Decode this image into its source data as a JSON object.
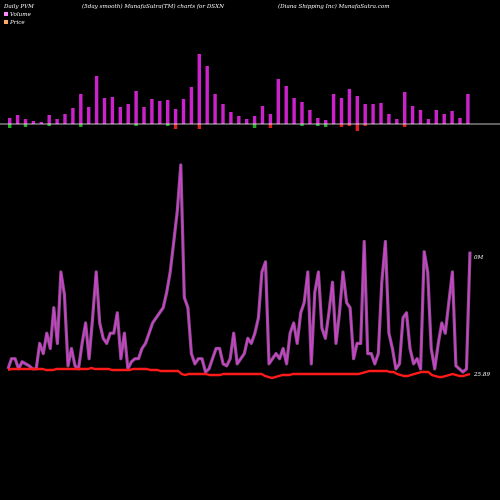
{
  "header": {
    "left": "Daily PVM",
    "center": "(5day smooth) MunafaSutra(TM) charts for DSXN",
    "right": "(Diana Shipping Inc) MunafaSutra.com"
  },
  "legend": {
    "volume": "Volume",
    "price": "Price"
  },
  "labels": {
    "volume_end": "0M",
    "price_end": "25.89"
  },
  "colors": {
    "background": "#000000",
    "volume_line": "#cc44cc",
    "volume_line_glow": "#ff88ff",
    "price_line": "#ff1a1a",
    "bar_up": "#cc22cc",
    "bar_down_red": "#dd2222",
    "bar_down_green": "#22aa22",
    "baseline": "#ffffff",
    "legend_volume": "#ff88ff",
    "legend_price": "#ffaa66"
  },
  "chart_data": {
    "type": "line",
    "bars": [
      {
        "h": 6,
        "d": 4,
        "dc": "green"
      },
      {
        "h": 9,
        "d": 0,
        "dc": ""
      },
      {
        "h": 5,
        "d": 3,
        "dc": "green"
      },
      {
        "h": 3,
        "d": 0,
        "dc": ""
      },
      {
        "h": 2,
        "d": 0,
        "dc": ""
      },
      {
        "h": 9,
        "d": 2,
        "dc": "green"
      },
      {
        "h": 5,
        "d": 0,
        "dc": ""
      },
      {
        "h": 10,
        "d": 0,
        "dc": ""
      },
      {
        "h": 16,
        "d": 0,
        "dc": ""
      },
      {
        "h": 30,
        "d": 3,
        "dc": "green"
      },
      {
        "h": 17,
        "d": 0,
        "dc": ""
      },
      {
        "h": 48,
        "d": 0,
        "dc": ""
      },
      {
        "h": 26,
        "d": 0,
        "dc": ""
      },
      {
        "h": 27,
        "d": 0,
        "dc": ""
      },
      {
        "h": 17,
        "d": 0,
        "dc": ""
      },
      {
        "h": 20,
        "d": 0,
        "dc": ""
      },
      {
        "h": 33,
        "d": 2,
        "dc": "green"
      },
      {
        "h": 17,
        "d": 0,
        "dc": ""
      },
      {
        "h": 25,
        "d": 0,
        "dc": ""
      },
      {
        "h": 23,
        "d": 0,
        "dc": ""
      },
      {
        "h": 24,
        "d": 2,
        "dc": "green"
      },
      {
        "h": 15,
        "d": 5,
        "dc": "red"
      },
      {
        "h": 25,
        "d": 0,
        "dc": ""
      },
      {
        "h": 37,
        "d": 0,
        "dc": ""
      },
      {
        "h": 70,
        "d": 5,
        "dc": "red"
      },
      {
        "h": 58,
        "d": 0,
        "dc": ""
      },
      {
        "h": 30,
        "d": 0,
        "dc": ""
      },
      {
        "h": 20,
        "d": 0,
        "dc": ""
      },
      {
        "h": 12,
        "d": 0,
        "dc": ""
      },
      {
        "h": 8,
        "d": 0,
        "dc": ""
      },
      {
        "h": 5,
        "d": 0,
        "dc": ""
      },
      {
        "h": 8,
        "d": 4,
        "dc": "green"
      },
      {
        "h": 18,
        "d": 0,
        "dc": ""
      },
      {
        "h": 10,
        "d": 4,
        "dc": "red"
      },
      {
        "h": 45,
        "d": 0,
        "dc": ""
      },
      {
        "h": 38,
        "d": 0,
        "dc": ""
      },
      {
        "h": 26,
        "d": 0,
        "dc": ""
      },
      {
        "h": 22,
        "d": 2,
        "dc": "green"
      },
      {
        "h": 14,
        "d": 0,
        "dc": ""
      },
      {
        "h": 6,
        "d": 2,
        "dc": "green"
      },
      {
        "h": 4,
        "d": 3,
        "dc": "green"
      },
      {
        "h": 30,
        "d": 0,
        "dc": ""
      },
      {
        "h": 26,
        "d": 3,
        "dc": "red"
      },
      {
        "h": 35,
        "d": 2,
        "dc": "red"
      },
      {
        "h": 28,
        "d": 7,
        "dc": "red"
      },
      {
        "h": 20,
        "d": 2,
        "dc": "red"
      },
      {
        "h": 20,
        "d": 0,
        "dc": ""
      },
      {
        "h": 21,
        "d": 0,
        "dc": ""
      },
      {
        "h": 10,
        "d": 0,
        "dc": ""
      },
      {
        "h": 5,
        "d": 0,
        "dc": ""
      },
      {
        "h": 32,
        "d": 3,
        "dc": "red"
      },
      {
        "h": 18,
        "d": 0,
        "dc": ""
      },
      {
        "h": 14,
        "d": 0,
        "dc": ""
      },
      {
        "h": 5,
        "d": 0,
        "dc": ""
      },
      {
        "h": 14,
        "d": 0,
        "dc": ""
      },
      {
        "h": 10,
        "d": 0,
        "dc": ""
      },
      {
        "h": 13,
        "d": 0,
        "dc": ""
      },
      {
        "h": 6,
        "d": 0,
        "dc": ""
      },
      {
        "h": 30,
        "d": 0,
        "dc": ""
      }
    ],
    "volume_line": [
      5,
      15,
      15,
      5,
      12,
      10,
      8,
      5,
      5,
      30,
      20,
      40,
      25,
      65,
      30,
      100,
      78,
      8,
      25,
      8,
      5,
      30,
      50,
      15,
      55,
      100,
      50,
      35,
      30,
      40,
      40,
      60,
      15,
      40,
      5,
      12,
      15,
      15,
      25,
      30,
      40,
      50,
      55,
      60,
      65,
      80,
      100,
      130,
      160,
      205,
      75,
      65,
      20,
      10,
      15,
      15,
      2,
      5,
      15,
      25,
      25,
      10,
      8,
      15,
      40,
      10,
      15,
      20,
      35,
      30,
      40,
      55,
      100,
      110,
      10,
      15,
      20,
      15,
      25,
      10,
      40,
      50,
      30,
      60,
      70,
      100,
      10,
      80,
      100,
      45,
      35,
      60,
      90,
      30,
      60,
      100,
      70,
      65,
      15,
      30,
      30,
      130,
      20,
      20,
      10,
      20,
      90,
      130,
      40,
      25,
      5,
      10,
      55,
      60,
      25,
      10,
      15,
      5,
      120,
      100,
      25,
      5,
      30,
      50,
      40,
      70,
      100,
      8,
      5,
      2,
      5,
      120
    ],
    "price_line": [
      4,
      5,
      5,
      5,
      5,
      5,
      5,
      5,
      5,
      5,
      5,
      4,
      4,
      4,
      5,
      5,
      5,
      5,
      5,
      5,
      5,
      5,
      5,
      5,
      6,
      5,
      5,
      5,
      5,
      5,
      4,
      4,
      4,
      4,
      4,
      4,
      5,
      5,
      5,
      5,
      5,
      4,
      4,
      4,
      3,
      3,
      3,
      3,
      3,
      3,
      0,
      -1,
      0,
      0,
      0,
      0,
      0,
      0,
      -1,
      -1,
      -1,
      -1,
      0,
      0,
      0,
      0,
      0,
      0,
      0,
      0,
      0,
      0,
      0,
      0,
      -2,
      -3,
      -4,
      -3,
      -2,
      -1,
      -1,
      -1,
      0,
      0,
      0,
      0,
      0,
      0,
      0,
      0,
      0,
      0,
      0,
      0,
      0,
      0,
      0,
      0,
      0,
      0,
      0,
      0,
      1,
      2,
      3,
      3,
      3,
      3,
      3,
      3,
      2,
      2,
      0,
      -1,
      -2,
      -2,
      -1,
      0,
      1,
      2,
      2,
      2,
      -1,
      -2,
      -3,
      -3,
      -2,
      -1,
      0,
      -1,
      -2,
      -2,
      -1,
      0
    ],
    "last_price": 25.89
  }
}
